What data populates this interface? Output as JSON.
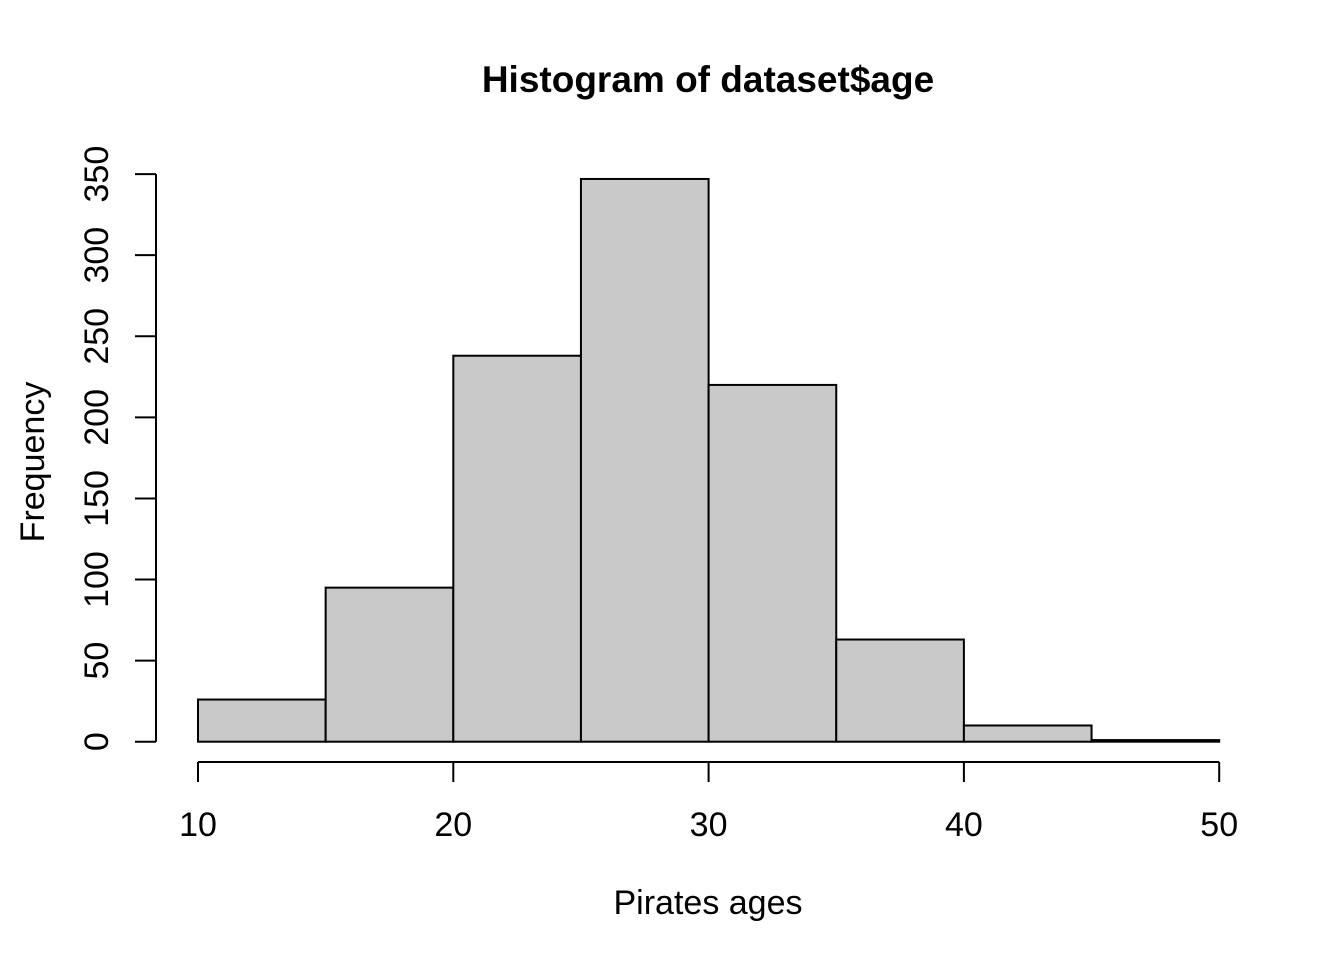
{
  "figure": {
    "background": "#FFFFFF"
  },
  "chart_data": {
    "type": "bar",
    "subtype": "histogram",
    "title": "Histogram of dataset$age",
    "xlabel": "Pirates ages",
    "ylabel": "Frequency",
    "bin_edges": [
      10,
      15,
      20,
      25,
      30,
      35,
      40,
      45,
      50
    ],
    "counts": [
      26,
      95,
      238,
      347,
      220,
      63,
      10,
      1
    ],
    "x_ticks": [
      10,
      20,
      30,
      40,
      50
    ],
    "y_ticks": [
      0,
      50,
      100,
      150,
      200,
      250,
      300,
      350
    ],
    "xlim": [
      10,
      50
    ],
    "ylim": [
      0,
      350
    ],
    "grid": false,
    "legend_position": "none",
    "bar_fill": "#C9C9C9",
    "bar_stroke": "#000000",
    "axis_color": "#000000",
    "text_color": "#000000"
  }
}
